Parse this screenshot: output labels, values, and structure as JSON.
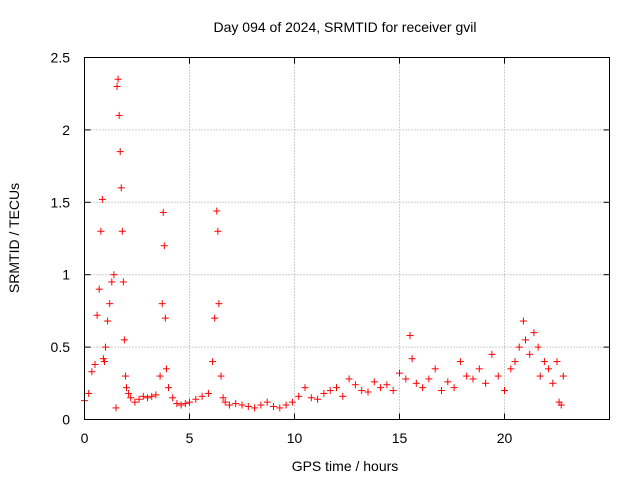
{
  "chart_data": {
    "type": "scatter",
    "title": "Day 094 of 2024, SRMTID for receiver gvil",
    "xlabel": "GPS time / hours",
    "ylabel": "SRMTID / TECUs",
    "xlim": [
      0,
      25
    ],
    "ylim": [
      0,
      2.5
    ],
    "xticks": [
      0,
      5,
      10,
      15,
      20
    ],
    "xtick_labels": [
      "0",
      "5",
      "10",
      "15",
      "20"
    ],
    "yticks": [
      0,
      0.5,
      1,
      1.5,
      2,
      2.5
    ],
    "ytick_labels": [
      "0",
      "0.5",
      "1",
      "1.5",
      "2",
      "2.5"
    ],
    "grid": true,
    "marker": "plus",
    "color": "#ff0000",
    "series": [
      {
        "name": "SRMTID",
        "x": [
          0.0,
          0.2,
          0.35,
          0.5,
          0.6,
          0.7,
          0.78,
          0.85,
          0.9,
          0.95,
          1.0,
          1.1,
          1.2,
          1.3,
          1.4,
          1.5,
          1.55,
          1.6,
          1.65,
          1.7,
          1.75,
          1.8,
          1.85,
          1.9,
          1.95,
          2.0,
          2.1,
          2.2,
          2.4,
          2.6,
          2.8,
          3.0,
          3.2,
          3.4,
          3.6,
          3.7,
          3.75,
          3.8,
          3.85,
          3.9,
          4.0,
          4.2,
          4.4,
          4.6,
          4.8,
          5.0,
          5.3,
          5.6,
          5.9,
          6.1,
          6.2,
          6.3,
          6.35,
          6.4,
          6.5,
          6.6,
          6.7,
          6.9,
          7.2,
          7.5,
          7.8,
          8.1,
          8.4,
          8.7,
          9.0,
          9.3,
          9.6,
          9.9,
          10.2,
          10.5,
          10.8,
          11.1,
          11.4,
          11.7,
          12.0,
          12.3,
          12.6,
          12.9,
          13.2,
          13.5,
          13.8,
          14.1,
          14.4,
          14.7,
          15.0,
          15.3,
          15.5,
          15.6,
          15.8,
          16.1,
          16.4,
          16.7,
          17.0,
          17.3,
          17.6,
          17.9,
          18.2,
          18.5,
          18.8,
          19.1,
          19.4,
          19.7,
          20.0,
          20.3,
          20.5,
          20.7,
          20.9,
          21.0,
          21.2,
          21.4,
          21.6,
          21.7,
          21.9,
          22.1,
          22.3,
          22.5,
          22.6,
          22.7,
          22.8
        ],
        "y": [
          0.13,
          0.18,
          0.33,
          0.38,
          0.72,
          0.9,
          1.3,
          1.52,
          0.42,
          0.4,
          0.5,
          0.68,
          0.8,
          0.95,
          1.0,
          0.08,
          2.3,
          2.35,
          2.1,
          1.85,
          1.6,
          1.3,
          0.95,
          0.55,
          0.3,
          0.22,
          0.18,
          0.15,
          0.12,
          0.14,
          0.16,
          0.15,
          0.16,
          0.17,
          0.3,
          0.8,
          1.43,
          1.2,
          0.7,
          0.35,
          0.22,
          0.15,
          0.11,
          0.1,
          0.11,
          0.12,
          0.14,
          0.16,
          0.18,
          0.4,
          0.7,
          1.44,
          1.3,
          0.8,
          0.3,
          0.15,
          0.12,
          0.1,
          0.11,
          0.1,
          0.09,
          0.08,
          0.1,
          0.12,
          0.09,
          0.08,
          0.1,
          0.12,
          0.16,
          0.22,
          0.15,
          0.14,
          0.18,
          0.2,
          0.22,
          0.16,
          0.28,
          0.24,
          0.2,
          0.19,
          0.26,
          0.22,
          0.24,
          0.2,
          0.32,
          0.28,
          0.58,
          0.42,
          0.25,
          0.22,
          0.28,
          0.35,
          0.2,
          0.26,
          0.22,
          0.4,
          0.3,
          0.28,
          0.35,
          0.25,
          0.45,
          0.3,
          0.2,
          0.35,
          0.4,
          0.5,
          0.68,
          0.55,
          0.45,
          0.6,
          0.5,
          0.3,
          0.4,
          0.35,
          0.25,
          0.4,
          0.12,
          0.1,
          0.3
        ]
      }
    ]
  }
}
